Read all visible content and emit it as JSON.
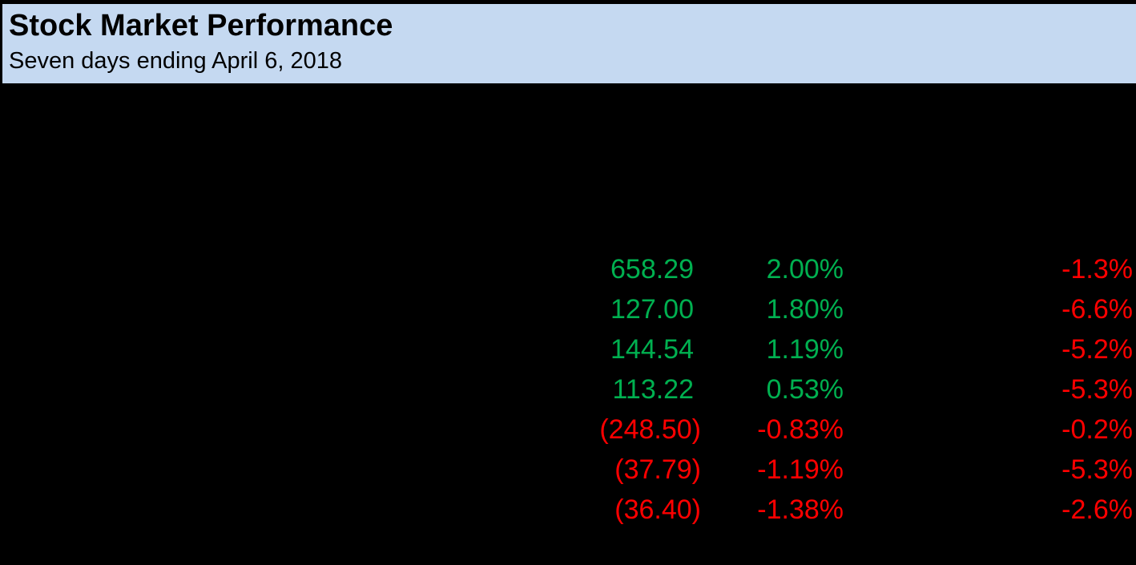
{
  "header": {
    "title": "Stock Market Performance",
    "subtitle": "Seven days ending April 6, 2018",
    "background_color": "#C5D9F1",
    "text_color": "#000000"
  },
  "body": {
    "background_color": "#000000"
  },
  "colors": {
    "positive": "#00B050",
    "negative": "#FF0000"
  },
  "table": {
    "rows": [
      {
        "net_change": "658.29",
        "weekly_pct": "2.00%",
        "ytd_pct": "-1.3%",
        "trend_color": "#00B050",
        "ytd_color": "#FF0000"
      },
      {
        "net_change": "127.00",
        "weekly_pct": "1.80%",
        "ytd_pct": "-6.6%",
        "trend_color": "#00B050",
        "ytd_color": "#FF0000"
      },
      {
        "net_change": "144.54",
        "weekly_pct": "1.19%",
        "ytd_pct": "-5.2%",
        "trend_color": "#00B050",
        "ytd_color": "#FF0000"
      },
      {
        "net_change": "113.22",
        "weekly_pct": "0.53%",
        "ytd_pct": "-5.3%",
        "trend_color": "#00B050",
        "ytd_color": "#FF0000"
      },
      {
        "net_change": "(248.50)",
        "weekly_pct": "-0.83%",
        "ytd_pct": "-0.2%",
        "trend_color": "#FF0000",
        "ytd_color": "#FF0000"
      },
      {
        "net_change": "(37.79)",
        "weekly_pct": "-1.19%",
        "ytd_pct": "-5.3%",
        "trend_color": "#FF0000",
        "ytd_color": "#FF0000"
      },
      {
        "net_change": "(36.40)",
        "weekly_pct": "-1.38%",
        "ytd_pct": "-2.6%",
        "trend_color": "#FF0000",
        "ytd_color": "#FF0000"
      }
    ]
  }
}
